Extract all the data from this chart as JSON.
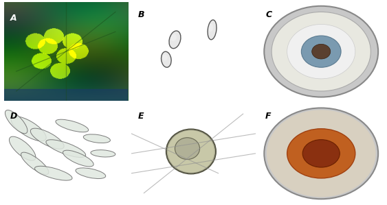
{
  "fig_width": 5.63,
  "fig_height": 2.99,
  "dpi": 100,
  "panels": [
    "A",
    "B",
    "C",
    "D",
    "E",
    "F"
  ],
  "label_fontsize": 9,
  "label_style": "italic",
  "bg_A": "#3a7a3a",
  "bg_B": "#d8d8d8",
  "bg_C": "#c8c8c8",
  "bg_D": "#c0c0c0",
  "bg_E": "#b8b8b8",
  "bg_F": "#c8c8c8",
  "outer_bg": "#ffffff"
}
